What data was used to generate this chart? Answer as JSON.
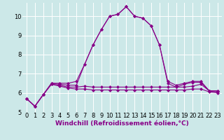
{
  "x": [
    0,
    1,
    2,
    3,
    4,
    5,
    6,
    7,
    8,
    9,
    10,
    11,
    12,
    13,
    14,
    15,
    16,
    17,
    18,
    19,
    20,
    21,
    22,
    23
  ],
  "line1": [
    5.7,
    5.3,
    5.9,
    6.5,
    6.5,
    6.5,
    6.6,
    7.5,
    8.5,
    9.3,
    10.0,
    10.1,
    10.5,
    10.0,
    9.9,
    9.5,
    8.5,
    6.6,
    6.4,
    6.5,
    6.6,
    6.6,
    6.1,
    6.1
  ],
  "line2": [
    5.7,
    5.3,
    5.9,
    6.5,
    6.45,
    6.4,
    6.4,
    7.5,
    8.5,
    9.3,
    10.0,
    10.1,
    10.5,
    10.0,
    9.9,
    9.5,
    8.5,
    6.5,
    6.3,
    6.45,
    6.55,
    6.55,
    6.1,
    6.1
  ],
  "line3": [
    5.7,
    5.3,
    5.9,
    6.45,
    6.4,
    6.3,
    6.3,
    6.35,
    6.3,
    6.3,
    6.3,
    6.3,
    6.3,
    6.3,
    6.3,
    6.3,
    6.3,
    6.3,
    6.3,
    6.3,
    6.35,
    6.45,
    6.1,
    6.05
  ],
  "line4": [
    5.7,
    5.3,
    5.9,
    6.45,
    6.35,
    6.25,
    6.2,
    6.2,
    6.15,
    6.15,
    6.15,
    6.15,
    6.15,
    6.15,
    6.15,
    6.15,
    6.15,
    6.15,
    6.15,
    6.15,
    6.2,
    6.2,
    6.05,
    6.0
  ],
  "line_color": "#880088",
  "bg_color": "#cce8e8",
  "grid_color": "#b0d8d8",
  "xlabel": "Windchill (Refroidissement éolien,°C)",
  "xlim": [
    -0.5,
    23.5
  ],
  "ylim": [
    5.0,
    10.7
  ],
  "yticks": [
    5,
    6,
    7,
    8,
    9,
    10
  ],
  "xticks": [
    0,
    1,
    2,
    3,
    4,
    5,
    6,
    7,
    8,
    9,
    10,
    11,
    12,
    13,
    14,
    15,
    16,
    17,
    18,
    19,
    20,
    21,
    22,
    23
  ],
  "xlabel_fontsize": 6.5,
  "tick_fontsize": 6,
  "marker": "D",
  "markersize": 2.0,
  "linewidth": 0.8
}
